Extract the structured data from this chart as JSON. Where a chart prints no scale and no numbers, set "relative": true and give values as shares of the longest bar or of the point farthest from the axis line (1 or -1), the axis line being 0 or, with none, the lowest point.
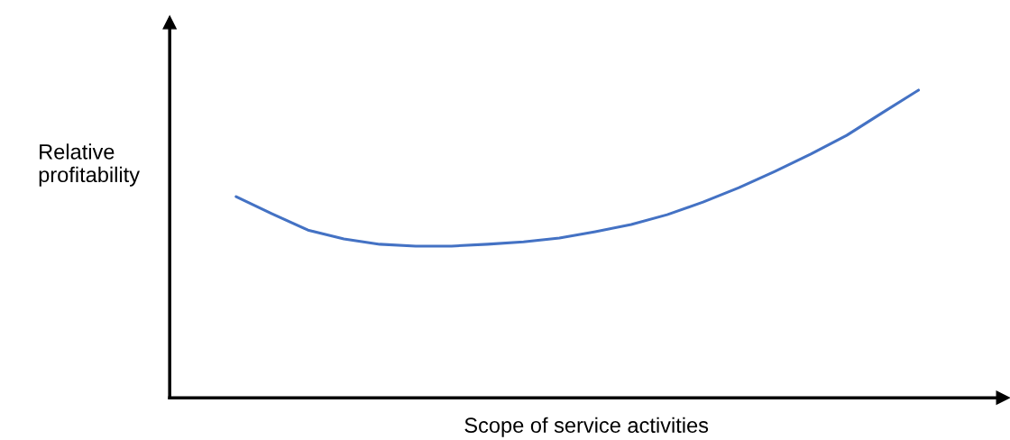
{
  "chart_data": {
    "type": "line",
    "relative": true,
    "xlabel": "Scope of service activities",
    "ylabel": "Relative\nprofitability",
    "categories": [
      null,
      null,
      null,
      null,
      null,
      null,
      null,
      null,
      null,
      null,
      null,
      null,
      null,
      null,
      null,
      null,
      null,
      null,
      null,
      null
    ],
    "series": [
      {
        "color": "#4472c4",
        "values": [
          0.654,
          0.598,
          0.545,
          0.516,
          0.499,
          0.493,
          0.493,
          0.499,
          0.507,
          0.519,
          0.54,
          0.563,
          0.595,
          0.636,
          0.683,
          0.736,
          0.792,
          0.853,
          0.927,
          1.0
        ]
      }
    ],
    "grid": false,
    "legend": false,
    "marker": "none",
    "line_style": "solid"
  }
}
